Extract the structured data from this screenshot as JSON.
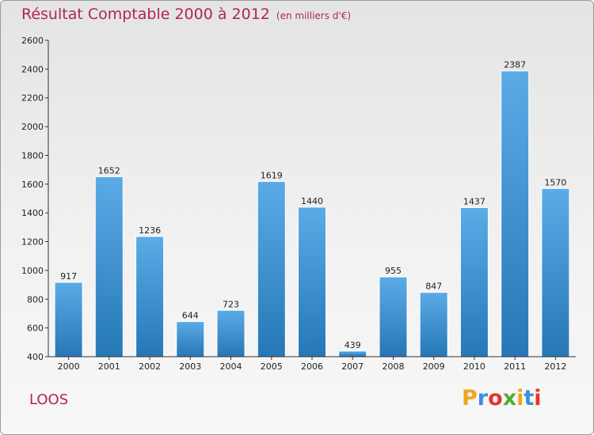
{
  "title": "Résultat Comptable 2000 à 2012",
  "unit": "(en milliers d'€)",
  "commune": "LOOS",
  "brand": {
    "letters": [
      "P",
      "r",
      "o",
      "x",
      "i",
      "t",
      "i"
    ],
    "colors": [
      "#f2a51c",
      "#3a8fd6",
      "#e8332a",
      "#4caf2f",
      "#f2a51c",
      "#3a8fd6",
      "#e8332a"
    ]
  },
  "colors": {
    "accent": "#b0245a",
    "bar_top": "#5aabe6",
    "bar_bottom": "#2677b7",
    "axis": "#333333"
  },
  "chart_data": {
    "type": "bar",
    "title": "Résultat Comptable 2000 à 2012",
    "ylabel": "en milliers d'€",
    "xlabel": "",
    "categories": [
      "2000",
      "2001",
      "2002",
      "2003",
      "2004",
      "2005",
      "2006",
      "2007",
      "2008",
      "2009",
      "2010",
      "2011",
      "2012"
    ],
    "values": [
      917,
      1652,
      1236,
      644,
      723,
      1619,
      1440,
      439,
      955,
      847,
      1437,
      2387,
      1570
    ],
    "ylim": [
      400,
      2600
    ],
    "yticks": [
      400,
      600,
      800,
      1000,
      1200,
      1400,
      1600,
      1800,
      2000,
      2200,
      2400,
      2600
    ],
    "grid": false
  }
}
